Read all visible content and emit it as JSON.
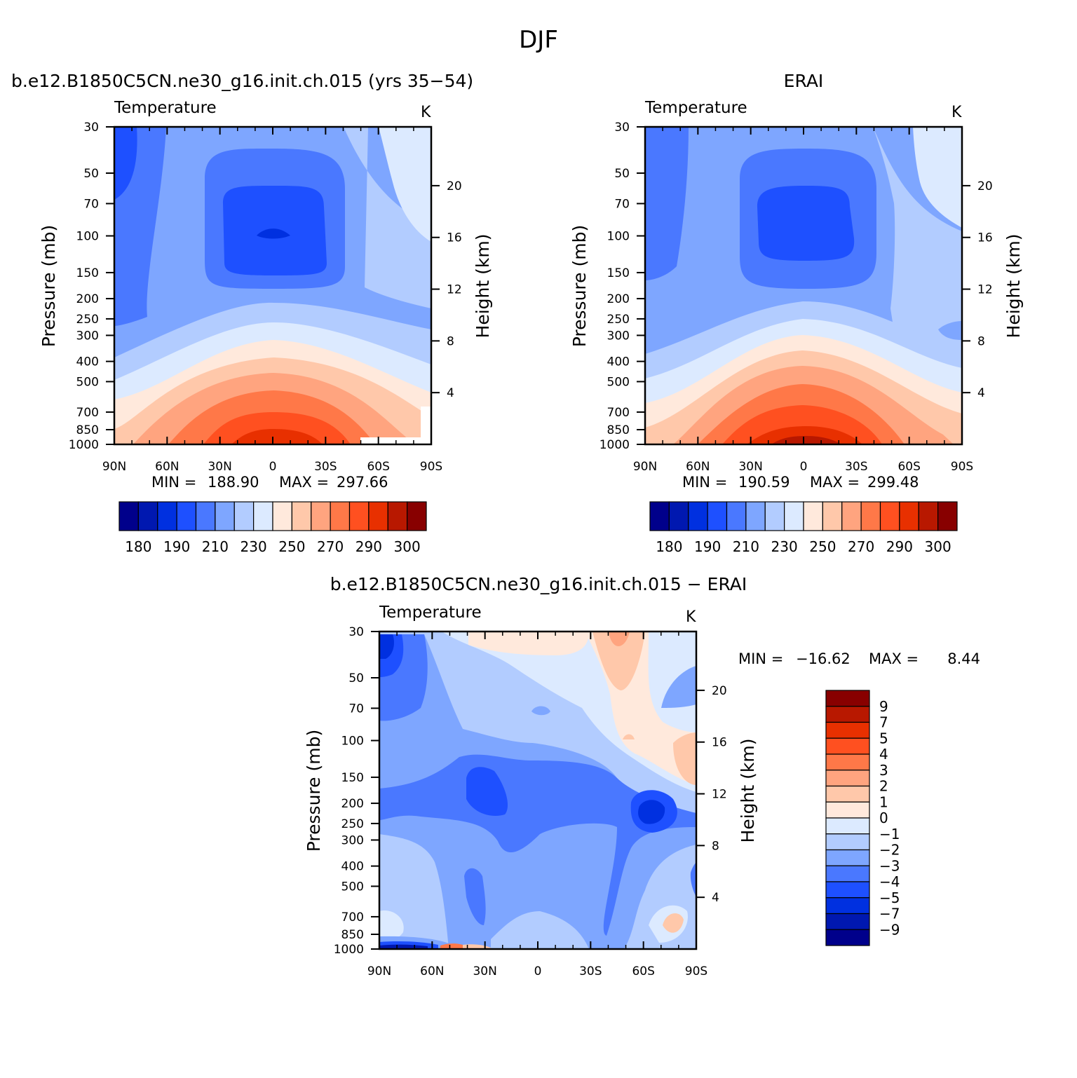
{
  "page": {
    "title": "DJF"
  },
  "colors": {
    "abs_palette": [
      "#00008b",
      "#0018b0",
      "#0030e0",
      "#1e50ff",
      "#4a78ff",
      "#7ea6ff",
      "#b2ccff",
      "#dceaff",
      "#ffe9dc",
      "#ffc8aa",
      "#ffa47f",
      "#ff7848",
      "#ff5020",
      "#e83000",
      "#b81800",
      "#880000"
    ],
    "diff_palette": [
      "#00008b",
      "#0018b0",
      "#0030e0",
      "#1e50ff",
      "#4a78ff",
      "#7ea6ff",
      "#b2ccff",
      "#dceaff",
      "#ffe9dc",
      "#ffc8aa",
      "#ffa47f",
      "#ff7848",
      "#ff5020",
      "#e83000",
      "#b81800",
      "#880000"
    ]
  },
  "chart_data": [
    {
      "type": "heatmap",
      "id": "model",
      "title": "b.e12.B1850C5CN.ne30_g16.init.ch.015 (yrs 35−54)",
      "left_label": "Temperature",
      "units": "K",
      "xlabel": "",
      "ylabel": "Pressure (mb)",
      "y2label": "Height (km)",
      "x_ticks": [
        "90N",
        "60N",
        "30N",
        "0",
        "30S",
        "60S",
        "90S"
      ],
      "y_ticks": [
        "30",
        "50",
        "70",
        "100",
        "150",
        "200",
        "250",
        "300",
        "400",
        "500",
        "700",
        "850",
        "1000"
      ],
      "y2_ticks": [
        "20",
        "16",
        "12",
        "8",
        "4"
      ],
      "min_label": "MIN =",
      "min_value": "188.90",
      "max_label": "MAX =",
      "max_value": "297.66",
      "min": 188.9,
      "max": 297.66,
      "levels": [
        180,
        185,
        190,
        200,
        210,
        220,
        230,
        240,
        250,
        260,
        270,
        280,
        290,
        295,
        300
      ],
      "colorbar_labels": [
        "180",
        "190",
        "210",
        "230",
        "250",
        "270",
        "290",
        "300"
      ]
    },
    {
      "type": "heatmap",
      "id": "obs",
      "title": "ERAI",
      "left_label": "Temperature",
      "units": "K",
      "xlabel": "",
      "ylabel": "Pressure (mb)",
      "y2label": "Height (km)",
      "x_ticks": [
        "90N",
        "60N",
        "30N",
        "0",
        "30S",
        "60S",
        "90S"
      ],
      "y_ticks": [
        "30",
        "50",
        "70",
        "100",
        "150",
        "200",
        "250",
        "300",
        "400",
        "500",
        "700",
        "850",
        "1000"
      ],
      "y2_ticks": [
        "20",
        "16",
        "12",
        "8",
        "4"
      ],
      "min_label": "MIN =",
      "min_value": "190.59",
      "max_label": "MAX =",
      "max_value": "299.48",
      "min": 190.59,
      "max": 299.48,
      "levels": [
        180,
        185,
        190,
        200,
        210,
        220,
        230,
        240,
        250,
        260,
        270,
        280,
        290,
        295,
        300
      ],
      "colorbar_labels": [
        "180",
        "190",
        "210",
        "230",
        "250",
        "270",
        "290",
        "300"
      ]
    },
    {
      "type": "heatmap",
      "id": "diff",
      "title": "b.e12.B1850C5CN.ne30_g16.init.ch.015 − ERAI",
      "left_label": "Temperature",
      "units": "K",
      "xlabel": "",
      "ylabel": "Pressure (mb)",
      "y2label": "Height (km)",
      "x_ticks": [
        "90N",
        "60N",
        "30N",
        "0",
        "30S",
        "60S",
        "90S"
      ],
      "y_ticks": [
        "30",
        "50",
        "70",
        "100",
        "150",
        "200",
        "250",
        "300",
        "400",
        "500",
        "700",
        "850",
        "1000"
      ],
      "y2_ticks": [
        "20",
        "16",
        "12",
        "8",
        "4"
      ],
      "min_label": "MIN =",
      "min_value": "−16.62",
      "max_label": "MAX =",
      "max_value": "8.44",
      "min": -16.62,
      "max": 8.44,
      "levels": [
        -9,
        -7,
        -5,
        -4,
        -3,
        -2,
        -1,
        0,
        1,
        2,
        3,
        4,
        5,
        7,
        9
      ],
      "colorbar_labels": [
        "9",
        "7",
        "5",
        "4",
        "3",
        "2",
        "1",
        "0",
        "−1",
        "−2",
        "−3",
        "−4",
        "−5",
        "−7",
        "−9"
      ]
    }
  ]
}
